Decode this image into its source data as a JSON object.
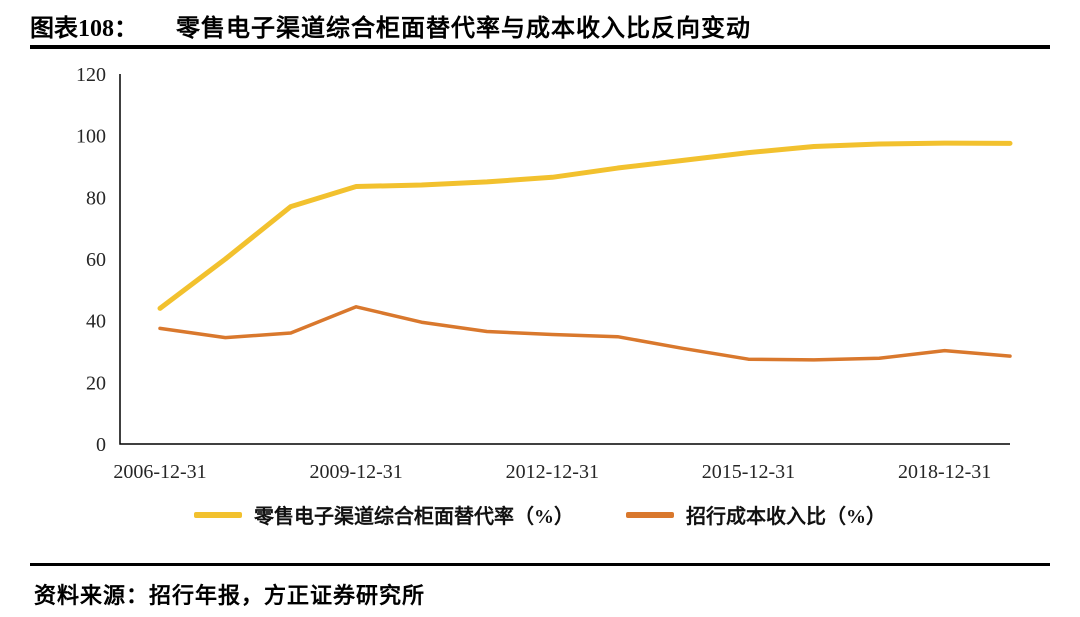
{
  "header": {
    "figure_label": "图表108：",
    "title": "零售电子渠道综合柜面替代率与成本收入比反向变动"
  },
  "source": {
    "text": "资料来源：招行年报，方正证券研究所"
  },
  "chart_data": {
    "type": "line",
    "x": [
      2006,
      2007,
      2008,
      2009,
      2010,
      2011,
      2012,
      2013,
      2014,
      2015,
      2016,
      2017,
      2018,
      2019
    ],
    "x_tick_labels": [
      "2006-12-31",
      "2009-12-31",
      "2012-12-31",
      "2015-12-31",
      "2018-12-31"
    ],
    "x_tick_indices": [
      0,
      3,
      6,
      9,
      12
    ],
    "yticks": [
      0,
      20,
      40,
      60,
      80,
      100,
      120
    ],
    "ylim": [
      0,
      120
    ],
    "grid": false,
    "legend_position": "bottom",
    "series": [
      {
        "id": "substitution-rate-line",
        "name": "零售电子渠道综合柜面替代率（%）",
        "color": "#F2C12E",
        "width": 5,
        "values": [
          44,
          60,
          77,
          83.5,
          84,
          85,
          86.5,
          89.5,
          92,
          94.5,
          96.5,
          97.3,
          97.6,
          97.5
        ]
      },
      {
        "id": "cost-income-ratio-line",
        "name": "招行成本收入比（%）",
        "color": "#D9782D",
        "width": 3.5,
        "values": [
          37.5,
          34.5,
          36,
          44.5,
          39.5,
          36.5,
          35.5,
          34.8,
          31,
          27.5,
          27.3,
          27.8,
          30.3,
          28.5
        ]
      }
    ]
  }
}
